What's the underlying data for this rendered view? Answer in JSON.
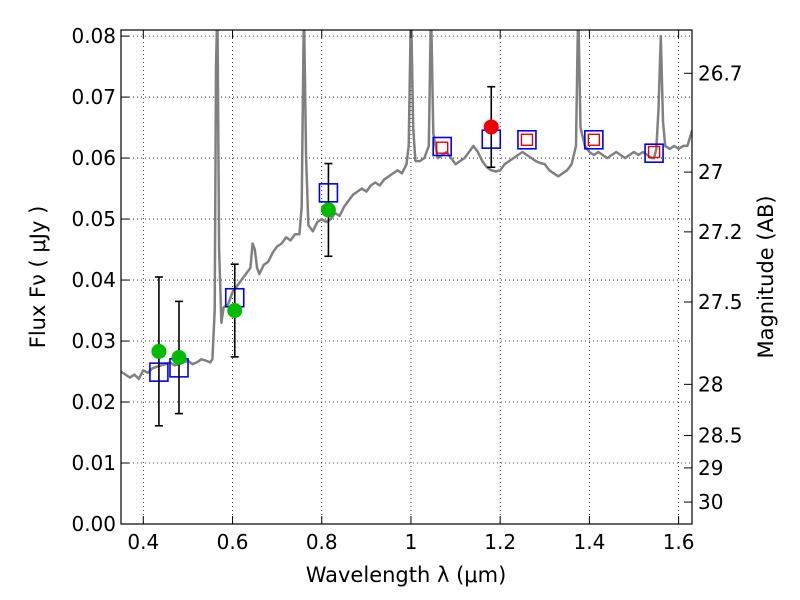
{
  "chart_data": {
    "type": "scatter",
    "xlabel": "Wavelength  λ (μm)",
    "ylabel": "Flux  Fν  ( μJy )",
    "ylabel_right": "Magnitude (AB)",
    "xlim": [
      0.35,
      1.63
    ],
    "ylim": [
      0.0,
      0.081
    ],
    "grid": true,
    "x_ticks": [
      {
        "value": 0.4,
        "label": "0.4"
      },
      {
        "value": 0.6,
        "label": "0.6"
      },
      {
        "value": 0.8,
        "label": "0.8"
      },
      {
        "value": 1.0,
        "label": "1"
      },
      {
        "value": 1.2,
        "label": "1.2"
      },
      {
        "value": 1.4,
        "label": "1.4"
      },
      {
        "value": 1.6,
        "label": "1.6"
      }
    ],
    "y_ticks": [
      {
        "value": 0.0,
        "label": "0.00"
      },
      {
        "value": 0.01,
        "label": "0.01"
      },
      {
        "value": 0.02,
        "label": "0.02"
      },
      {
        "value": 0.03,
        "label": "0.03"
      },
      {
        "value": 0.04,
        "label": "0.04"
      },
      {
        "value": 0.05,
        "label": "0.05"
      },
      {
        "value": 0.06,
        "label": "0.06"
      },
      {
        "value": 0.07,
        "label": "0.07"
      },
      {
        "value": 0.08,
        "label": "0.08"
      }
    ],
    "right_ticks": [
      {
        "flux": 0.0739,
        "label": "26.7"
      },
      {
        "flux": 0.0577,
        "label": "27"
      },
      {
        "flux": 0.0479,
        "label": "27.2"
      },
      {
        "flux": 0.0364,
        "label": "27.5"
      },
      {
        "flux": 0.0229,
        "label": "28"
      },
      {
        "flux": 0.0145,
        "label": "28.5"
      },
      {
        "flux": 0.0092,
        "label": "29"
      },
      {
        "flux": 0.0036,
        "label": "30"
      }
    ],
    "series": [
      {
        "name": "model spectrum",
        "style": "line",
        "color": "#808080",
        "points": [
          [
            0.35,
            0.025
          ],
          [
            0.36,
            0.0245
          ],
          [
            0.37,
            0.024
          ],
          [
            0.38,
            0.0245
          ],
          [
            0.39,
            0.0238
          ],
          [
            0.4,
            0.0252
          ],
          [
            0.41,
            0.0248
          ],
          [
            0.42,
            0.0255
          ],
          [
            0.43,
            0.0258
          ],
          [
            0.44,
            0.026
          ],
          [
            0.45,
            0.0262
          ],
          [
            0.46,
            0.0265
          ],
          [
            0.47,
            0.026
          ],
          [
            0.48,
            0.0262
          ],
          [
            0.49,
            0.0265
          ],
          [
            0.5,
            0.0268
          ],
          [
            0.51,
            0.0262
          ],
          [
            0.52,
            0.0265
          ],
          [
            0.53,
            0.027
          ],
          [
            0.54,
            0.0268
          ],
          [
            0.55,
            0.0265
          ],
          [
            0.555,
            0.027
          ],
          [
            0.56,
            0.035
          ],
          [
            0.563,
            0.075
          ],
          [
            0.566,
            0.085
          ],
          [
            0.57,
            0.045
          ],
          [
            0.575,
            0.033
          ],
          [
            0.58,
            0.0355
          ],
          [
            0.59,
            0.036
          ],
          [
            0.6,
            0.038
          ],
          [
            0.61,
            0.039
          ],
          [
            0.62,
            0.04
          ],
          [
            0.63,
            0.041
          ],
          [
            0.64,
            0.042
          ],
          [
            0.645,
            0.046
          ],
          [
            0.65,
            0.045
          ],
          [
            0.655,
            0.042
          ],
          [
            0.66,
            0.041
          ],
          [
            0.67,
            0.0425
          ],
          [
            0.68,
            0.043
          ],
          [
            0.69,
            0.0445
          ],
          [
            0.7,
            0.0455
          ],
          [
            0.71,
            0.046
          ],
          [
            0.72,
            0.047
          ],
          [
            0.73,
            0.0465
          ],
          [
            0.74,
            0.0475
          ],
          [
            0.75,
            0.0475
          ],
          [
            0.755,
            0.052
          ],
          [
            0.76,
            0.085
          ],
          [
            0.765,
            0.06
          ],
          [
            0.77,
            0.049
          ],
          [
            0.78,
            0.048
          ],
          [
            0.79,
            0.0495
          ],
          [
            0.8,
            0.05
          ],
          [
            0.81,
            0.0495
          ],
          [
            0.82,
            0.05
          ],
          [
            0.83,
            0.051
          ],
          [
            0.84,
            0.0505
          ],
          [
            0.85,
            0.052
          ],
          [
            0.86,
            0.053
          ],
          [
            0.87,
            0.054
          ],
          [
            0.88,
            0.0545
          ],
          [
            0.89,
            0.055
          ],
          [
            0.9,
            0.0545
          ],
          [
            0.91,
            0.0555
          ],
          [
            0.92,
            0.056
          ],
          [
            0.93,
            0.0555
          ],
          [
            0.94,
            0.0565
          ],
          [
            0.95,
            0.057
          ],
          [
            0.96,
            0.0575
          ],
          [
            0.97,
            0.058
          ],
          [
            0.98,
            0.0575
          ],
          [
            0.99,
            0.059
          ],
          [
            0.995,
            0.062
          ],
          [
            1.0,
            0.085
          ],
          [
            1.005,
            0.065
          ],
          [
            1.01,
            0.0595
          ],
          [
            1.02,
            0.0595
          ],
          [
            1.03,
            0.06
          ],
          [
            1.04,
            0.062
          ],
          [
            1.045,
            0.085
          ],
          [
            1.05,
            0.064
          ],
          [
            1.06,
            0.06
          ],
          [
            1.07,
            0.0605
          ],
          [
            1.08,
            0.061
          ],
          [
            1.09,
            0.06
          ],
          [
            1.1,
            0.059
          ],
          [
            1.11,
            0.0595
          ],
          [
            1.12,
            0.06
          ],
          [
            1.13,
            0.061
          ],
          [
            1.14,
            0.062
          ],
          [
            1.15,
            0.061
          ],
          [
            1.16,
            0.0595
          ],
          [
            1.17,
            0.0585
          ],
          [
            1.18,
            0.058
          ],
          [
            1.19,
            0.0578
          ],
          [
            1.2,
            0.058
          ],
          [
            1.21,
            0.059
          ],
          [
            1.22,
            0.0595
          ],
          [
            1.23,
            0.06
          ],
          [
            1.24,
            0.0605
          ],
          [
            1.25,
            0.061
          ],
          [
            1.26,
            0.0605
          ],
          [
            1.27,
            0.06
          ],
          [
            1.28,
            0.0595
          ],
          [
            1.29,
            0.0592
          ],
          [
            1.3,
            0.059
          ],
          [
            1.31,
            0.058
          ],
          [
            1.32,
            0.0575
          ],
          [
            1.33,
            0.057
          ],
          [
            1.34,
            0.0575
          ],
          [
            1.35,
            0.058
          ],
          [
            1.36,
            0.059
          ],
          [
            1.37,
            0.062
          ],
          [
            1.375,
            0.085
          ],
          [
            1.38,
            0.065
          ],
          [
            1.39,
            0.062
          ],
          [
            1.4,
            0.061
          ],
          [
            1.41,
            0.0605
          ],
          [
            1.42,
            0.061
          ],
          [
            1.43,
            0.0605
          ],
          [
            1.44,
            0.06
          ],
          [
            1.45,
            0.0605
          ],
          [
            1.46,
            0.061
          ],
          [
            1.47,
            0.0605
          ],
          [
            1.48,
            0.06
          ],
          [
            1.49,
            0.0605
          ],
          [
            1.5,
            0.061
          ],
          [
            1.51,
            0.0605
          ],
          [
            1.52,
            0.061
          ],
          [
            1.53,
            0.0605
          ],
          [
            1.54,
            0.06
          ],
          [
            1.545,
            0.06
          ],
          [
            1.55,
            0.0615
          ],
          [
            1.555,
            0.068
          ],
          [
            1.56,
            0.08
          ],
          [
            1.565,
            0.066
          ],
          [
            1.57,
            0.062
          ],
          [
            1.58,
            0.0615
          ],
          [
            1.59,
            0.062
          ],
          [
            1.6,
            0.0615
          ],
          [
            1.61,
            0.062
          ],
          [
            1.62,
            0.062
          ],
          [
            1.63,
            0.0645
          ]
        ]
      },
      {
        "name": "observed photometry (green)",
        "style": "marker-circle",
        "color": "#00bb00",
        "points": [
          {
            "x": 0.435,
            "y": 0.0283,
            "err": 0.0122
          },
          {
            "x": 0.48,
            "y": 0.0273,
            "err": 0.0092
          },
          {
            "x": 0.605,
            "y": 0.035,
            "err": 0.0076
          },
          {
            "x": 0.815,
            "y": 0.0515,
            "err": 0.0076
          }
        ]
      },
      {
        "name": "observed photometry (red)",
        "style": "marker-circle",
        "color": "#ee0000",
        "points": [
          {
            "x": 1.18,
            "y": 0.0651,
            "err": 0.0066
          }
        ]
      },
      {
        "name": "model photometry (blue squares)",
        "style": "marker-square",
        "color": "#0000ee",
        "points": [
          {
            "x": 0.435,
            "y": 0.0249
          },
          {
            "x": 0.48,
            "y": 0.0256
          },
          {
            "x": 0.605,
            "y": 0.0371
          },
          {
            "x": 0.815,
            "y": 0.0543
          },
          {
            "x": 1.07,
            "y": 0.0619
          },
          {
            "x": 1.18,
            "y": 0.0631
          },
          {
            "x": 1.26,
            "y": 0.063
          },
          {
            "x": 1.41,
            "y": 0.063
          },
          {
            "x": 1.545,
            "y": 0.0608
          }
        ]
      },
      {
        "name": "photometry (red open squares)",
        "style": "marker-square-small",
        "color": "#ee0000",
        "points": [
          {
            "x": 1.07,
            "y": 0.0617
          },
          {
            "x": 1.26,
            "y": 0.063
          },
          {
            "x": 1.41,
            "y": 0.063
          },
          {
            "x": 1.545,
            "y": 0.061
          }
        ]
      }
    ]
  }
}
